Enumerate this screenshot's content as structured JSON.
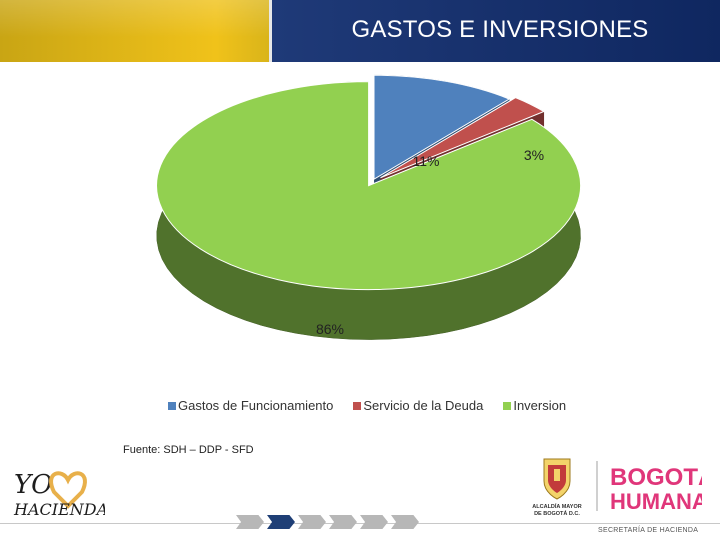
{
  "slide": {
    "title": "GASTOS E INVERSIONES",
    "source": "Fuente: SDH – DDP - SFD"
  },
  "footer": {
    "logos": {
      "left": {
        "line1": "YO",
        "line2": "HACIENDA"
      },
      "right": {
        "alcaldia_line1": "ALCALDÍA MAYOR",
        "alcaldia_line2": "DE BOGOTÁ D.C.",
        "brand_line1": "BOGOTÁ",
        "brand_line2": "HUMANA"
      }
    },
    "secretaria": "SECRETARÍA DE HACIENDA",
    "progress": {
      "steps": 6,
      "active_step": 2
    }
  },
  "colors": {
    "header_gold": "#f0c21a",
    "header_navy": "#1a3470",
    "slice_funcionamiento": "#4f81bd",
    "slice_deuda": "#c0504d",
    "slice_inversion": "#92d050"
  },
  "chart_data": {
    "type": "pie",
    "style": "3d-exploded",
    "labels": [
      "Gastos de Funcionamiento",
      "Servicio de la Deuda",
      "Inversion"
    ],
    "values": [
      11,
      3,
      86
    ],
    "data_labels": [
      "11%",
      "3%",
      "86%"
    ],
    "colors": [
      "#4f81bd",
      "#c0504d",
      "#92d050"
    ],
    "legend_position": "bottom"
  }
}
